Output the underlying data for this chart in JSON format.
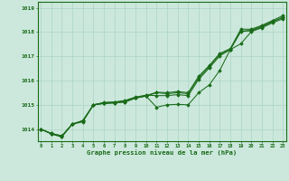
{
  "title": "Graphe pression niveau de la mer (hPa)",
  "background_color": "#cce8dc",
  "grid_color": "#aad4c4",
  "line_color": "#1a6b1a",
  "x_ticks": [
    0,
    1,
    2,
    3,
    4,
    5,
    6,
    7,
    8,
    9,
    10,
    11,
    12,
    13,
    14,
    15,
    16,
    17,
    18,
    19,
    20,
    21,
    22,
    23
  ],
  "ylim": [
    1013.5,
    1019.25
  ],
  "yticks": [
    1014,
    1015,
    1016,
    1017,
    1018,
    1019
  ],
  "series": [
    [
      1014.0,
      1013.82,
      1013.72,
      1014.2,
      1014.35,
      1015.0,
      1015.1,
      1015.12,
      1015.18,
      1015.32,
      1015.4,
      1015.38,
      1015.38,
      1015.42,
      1015.38,
      1016.05,
      1016.52,
      1017.02,
      1017.28,
      1018.05,
      1018.05,
      1018.22,
      1018.42,
      1018.62
    ],
    [
      1014.0,
      1013.82,
      1013.72,
      1014.2,
      1014.35,
      1015.0,
      1015.08,
      1015.1,
      1015.15,
      1015.3,
      1015.38,
      1015.52,
      1015.5,
      1015.55,
      1015.5,
      1016.18,
      1016.62,
      1017.12,
      1017.32,
      1018.12,
      1018.12,
      1018.28,
      1018.48,
      1018.68
    ],
    [
      1014.0,
      1013.8,
      1013.68,
      1014.22,
      1014.32,
      1015.0,
      1015.06,
      1015.08,
      1015.12,
      1015.28,
      1015.36,
      1014.9,
      1015.0,
      1015.02,
      1015.0,
      1015.5,
      1015.82,
      1016.42,
      1017.28,
      1017.52,
      1018.02,
      1018.18,
      1018.38,
      1018.55
    ],
    [
      1014.0,
      1013.8,
      1013.68,
      1014.2,
      1014.3,
      1015.0,
      1015.05,
      1015.08,
      1015.12,
      1015.28,
      1015.36,
      1015.5,
      1015.46,
      1015.5,
      1015.46,
      1016.12,
      1016.58,
      1017.08,
      1017.28,
      1018.02,
      1018.08,
      1018.24,
      1018.44,
      1018.6
    ]
  ]
}
